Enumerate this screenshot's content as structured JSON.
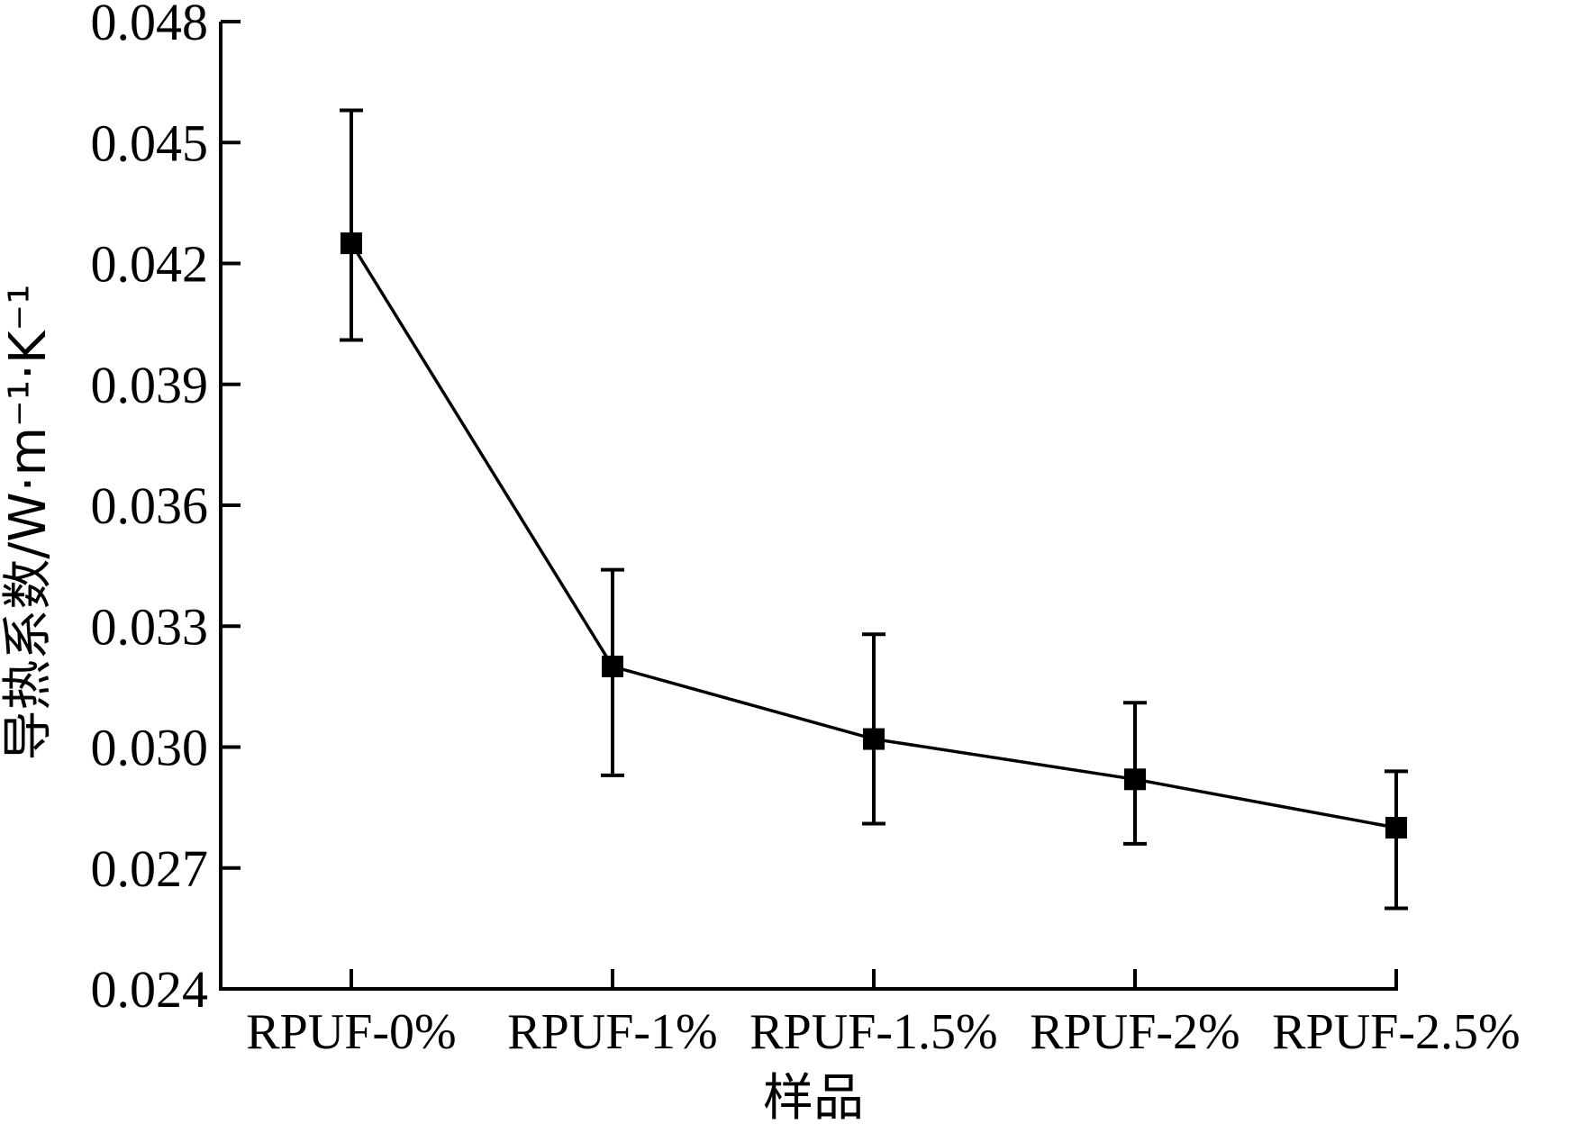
{
  "chart_data": {
    "type": "line",
    "title": "",
    "xlabel": "样品",
    "ylabel": "导热系数/W·m⁻¹·K⁻¹",
    "categories": [
      "RPUF-0%",
      "RPUF-1%",
      "RPUF-1.5%",
      "RPUF-2%",
      "RPUF-2.5%"
    ],
    "series": [
      {
        "values": [
          0.0425,
          0.032,
          0.0302,
          0.0292,
          0.028
        ],
        "error_low": [
          0.0401,
          0.0293,
          0.0281,
          0.0276,
          0.026
        ],
        "error_high": [
          0.0458,
          0.0344,
          0.0328,
          0.0311,
          0.0294
        ],
        "marker": "square",
        "color": "#000000"
      }
    ],
    "ylim": [
      0.024,
      0.048
    ],
    "yticks": [
      "0.024",
      "0.027",
      "0.030",
      "0.033",
      "0.036",
      "0.039",
      "0.042",
      "0.045",
      "0.048"
    ],
    "grid": false,
    "legend": "none"
  }
}
